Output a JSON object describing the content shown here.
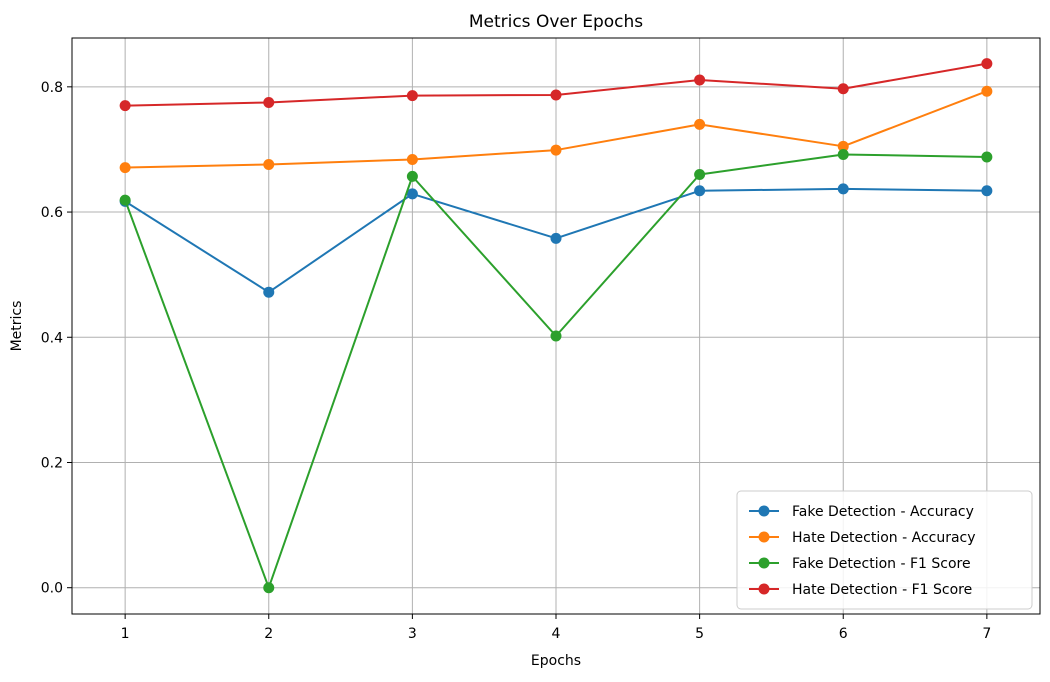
{
  "chart_data": {
    "type": "line",
    "title": "Metrics Over Epochs",
    "xlabel": "Epochs",
    "ylabel": "Metrics",
    "x": [
      1,
      2,
      3,
      4,
      5,
      6,
      7
    ],
    "xticks": [
      "1",
      "2",
      "3",
      "4",
      "5",
      "6",
      "7"
    ],
    "yticks": [
      "0.0",
      "0.2",
      "0.4",
      "0.6",
      "0.8"
    ],
    "xlim": [
      0.63,
      7.37
    ],
    "ylim": [
      -0.042,
      0.878
    ],
    "grid": true,
    "legend_position": "bottom-right",
    "series": [
      {
        "name": "Fake Detection - Accuracy",
        "color": "#1f77b4",
        "values": [
          0.617,
          0.472,
          0.629,
          0.558,
          0.634,
          0.637,
          0.634
        ]
      },
      {
        "name": "Hate Detection - Accuracy",
        "color": "#ff7f0e",
        "values": [
          0.671,
          0.676,
          0.684,
          0.699,
          0.74,
          0.705,
          0.793
        ]
      },
      {
        "name": "Fake Detection - F1 Score",
        "color": "#2ca02c",
        "values": [
          0.619,
          0.0,
          0.657,
          0.402,
          0.66,
          0.692,
          0.688
        ]
      },
      {
        "name": "Hate Detection - F1 Score",
        "color": "#d62728",
        "values": [
          0.77,
          0.775,
          0.786,
          0.787,
          0.811,
          0.797,
          0.837
        ]
      }
    ]
  }
}
